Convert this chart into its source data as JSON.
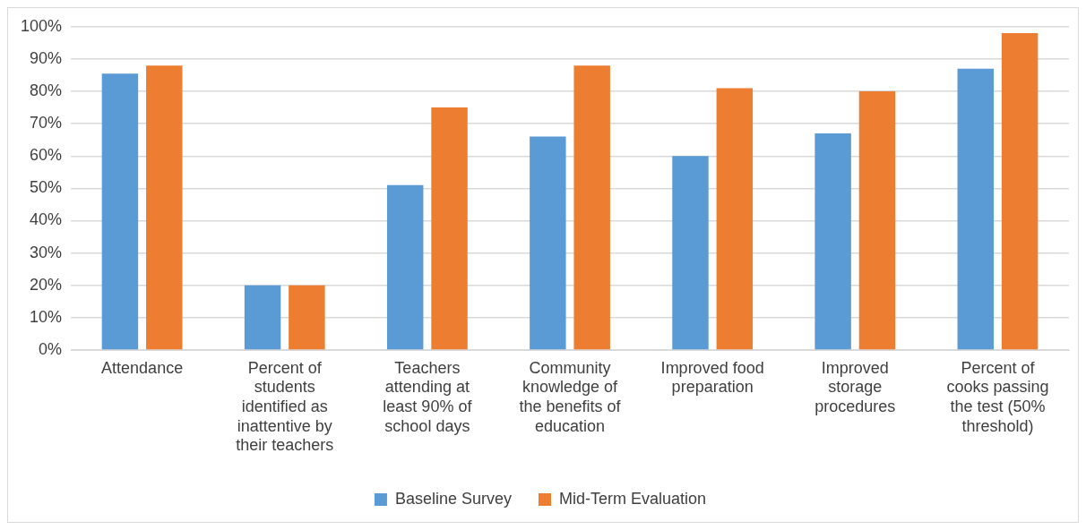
{
  "chart_data": {
    "type": "bar",
    "categories": [
      "Attendance",
      "Percent of students identified as inattentive by their teachers",
      "Teachers attending at least 90% of school days",
      "Community knowledge of the benefits of education",
      "Improved food preparation",
      "Improved storage procedures",
      "Percent of cooks passing the test (50% threshold)"
    ],
    "series": [
      {
        "name": "Baseline Survey",
        "color": "#5b9bd5",
        "values": [
          85.5,
          20,
          51,
          66,
          60,
          67,
          87
        ]
      },
      {
        "name": "Mid-Term Evaluation",
        "color": "#ed7d31",
        "values": [
          88,
          20,
          75,
          88,
          81,
          80,
          98
        ]
      }
    ],
    "ylim": [
      0,
      100
    ],
    "yticks": [
      {
        "value": 0,
        "label": "0%"
      },
      {
        "value": 10,
        "label": "10%"
      },
      {
        "value": 20,
        "label": "20%"
      },
      {
        "value": 30,
        "label": "30%"
      },
      {
        "value": 40,
        "label": "40%"
      },
      {
        "value": 50,
        "label": "50%"
      },
      {
        "value": 60,
        "label": "60%"
      },
      {
        "value": 70,
        "label": "70%"
      },
      {
        "value": 80,
        "label": "80%"
      },
      {
        "value": 90,
        "label": "90%"
      },
      {
        "value": 100,
        "label": "100%"
      }
    ],
    "grid": "y",
    "legend": "bottom"
  }
}
